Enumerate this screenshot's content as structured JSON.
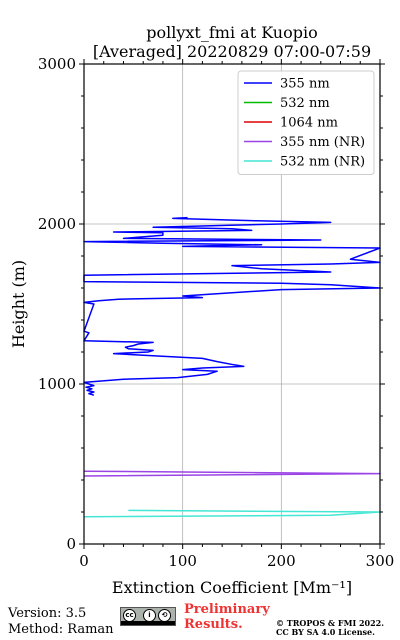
{
  "chart_data": {
    "type": "line",
    "title": "pollyxt_fmi at Kuopio",
    "subtitle": "[Averaged] 20220829 07:00-07:59",
    "xlabel": "Extinction Coefficient [Mm⁻¹]",
    "ylabel": "Height (m)",
    "xlim": [
      0,
      300
    ],
    "ylim": [
      0,
      3000
    ],
    "x_ticks": [
      0,
      100,
      200,
      300
    ],
    "y_ticks": [
      0,
      1000,
      2000,
      3000
    ],
    "grid": true,
    "legend_position": "top-right",
    "series": [
      {
        "name": "355 nm",
        "color": "#0000ff",
        "points": [
          [
            10,
            930
          ],
          [
            5,
            940
          ],
          [
            10,
            950
          ],
          [
            3,
            960
          ],
          [
            8,
            970
          ],
          [
            2,
            980
          ],
          [
            10,
            990
          ],
          [
            5,
            1000
          ],
          [
            0,
            1010
          ],
          [
            40,
            1030
          ],
          [
            95,
            1040
          ],
          [
            125,
            1060
          ],
          [
            135,
            1080
          ],
          [
            100,
            1090
          ],
          [
            120,
            1100
          ],
          [
            162,
            1110
          ],
          [
            152,
            1120
          ],
          [
            135,
            1140
          ],
          [
            120,
            1160
          ],
          [
            30,
            1190
          ],
          [
            65,
            1200
          ],
          [
            70,
            1210
          ],
          [
            45,
            1220
          ],
          [
            42,
            1230
          ],
          [
            50,
            1240
          ],
          [
            55,
            1250
          ],
          [
            70,
            1260
          ],
          [
            0,
            1270
          ],
          [
            5,
            1320
          ],
          [
            0,
            1330
          ],
          [
            10,
            1500
          ],
          [
            0,
            1510
          ],
          [
            15,
            1520
          ],
          [
            35,
            1530
          ],
          [
            120,
            1540
          ],
          [
            100,
            1550
          ],
          [
            125,
            1560
          ],
          [
            200,
            1590
          ],
          [
            300,
            1600
          ],
          [
            250,
            1620
          ],
          [
            200,
            1630
          ],
          [
            0,
            1640
          ],
          [
            0,
            1680
          ],
          [
            250,
            1700
          ],
          [
            180,
            1720
          ],
          [
            150,
            1740
          ],
          [
            250,
            1750
          ],
          [
            300,
            1760
          ],
          [
            270,
            1780
          ],
          [
            300,
            1850
          ],
          [
            100,
            1860
          ],
          [
            180,
            1870
          ],
          [
            80,
            1880
          ],
          [
            0,
            1890
          ],
          [
            240,
            1900
          ],
          [
            40,
            1910
          ],
          [
            80,
            1930
          ],
          [
            80,
            1945
          ],
          [
            30,
            1950
          ],
          [
            170,
            1960
          ],
          [
            150,
            1970
          ],
          [
            70,
            1980
          ],
          [
            200,
            2000
          ],
          [
            250,
            2010
          ],
          [
            175,
            2020
          ],
          [
            90,
            2035
          ],
          [
            105,
            2040
          ]
        ]
      },
      {
        "name": "532 nm",
        "color": "#00bb00",
        "points": []
      },
      {
        "name": "1064 nm",
        "color": "#dd0000",
        "points": []
      },
      {
        "name": "355 nm (NR)",
        "color": "#9b44e6",
        "points": [
          [
            0,
            425
          ],
          [
            300,
            440
          ],
          [
            0,
            455
          ]
        ]
      },
      {
        "name": "532 nm (NR)",
        "color": "#44e6d4",
        "points": [
          [
            45,
            210
          ],
          [
            300,
            200
          ],
          [
            250,
            180
          ],
          [
            0,
            170
          ]
        ]
      }
    ]
  },
  "footer": {
    "version": "Version: 3.5",
    "method": "Method: Raman",
    "license_badge": "cc-by-sa-badge",
    "preliminary_line1": "Preliminary",
    "preliminary_line2": "Results.",
    "copyright_line1": "© TROPOS & FMI 2022.",
    "copyright_line2": "CC BY SA 4.0 License."
  }
}
